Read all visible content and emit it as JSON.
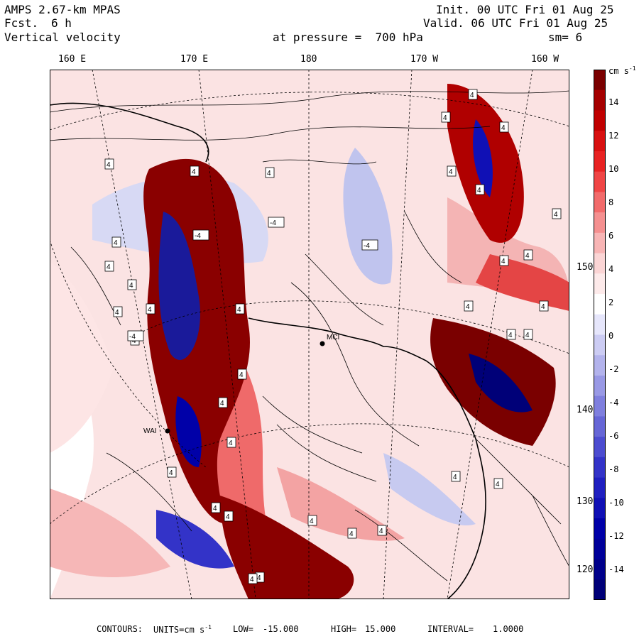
{
  "header": {
    "model": "AMPS 2.67-km MPAS",
    "fcst_label": "Fcst.",
    "fcst_value": "6 h",
    "field": "Vertical velocity",
    "init": "Init. 00 UTC Fri 01 Aug 25",
    "valid": "Valid. 06 UTC Fri 01 Aug 25",
    "pressure": "at pressure =  700 hPa",
    "smoothing": "sm= 6"
  },
  "longitude_labels": [
    "160 E",
    "170 E",
    "180",
    "170 W",
    "160 W"
  ],
  "latitude_labels": [
    "150 W",
    "140 W",
    "130 W",
    "120 W"
  ],
  "colorbar": {
    "units": "cm s",
    "units_exp": "-1",
    "ticks": [
      "14",
      "12",
      "10",
      "8",
      "6",
      "4",
      "2",
      "0",
      "-2",
      "-4",
      "-6",
      "-8",
      "-10",
      "-12",
      "-14"
    ],
    "colors": [
      "#7a0000",
      "#a50000",
      "#c00000",
      "#d81010",
      "#e82222",
      "#f04545",
      "#f26b6b",
      "#f59090",
      "#f8b5b5",
      "#fbd5d5",
      "#fdeaea",
      "#ffffff",
      "#e6e6fb",
      "#ccccf3",
      "#b3b3ec",
      "#9999e5",
      "#7f7fde",
      "#6666d6",
      "#4c4cd0",
      "#3333c8",
      "#1f1fc0",
      "#1010b5",
      "#0000a8",
      "#00009a",
      "#00008a",
      "#000078"
    ]
  },
  "map": {
    "station_labels": [
      "MCI",
      "WAI"
    ],
    "contour_markers": [
      "4",
      "-4"
    ]
  },
  "footer": {
    "contours_label": "CONTOURS:",
    "units_label": "UNITS=cm s",
    "units_exp": "-1",
    "low_label": "LOW=",
    "low": "-15.000",
    "high_label": "HIGH=",
    "high": "15.000",
    "interval_label": "INTERVAL=",
    "interval": "1.0000"
  }
}
